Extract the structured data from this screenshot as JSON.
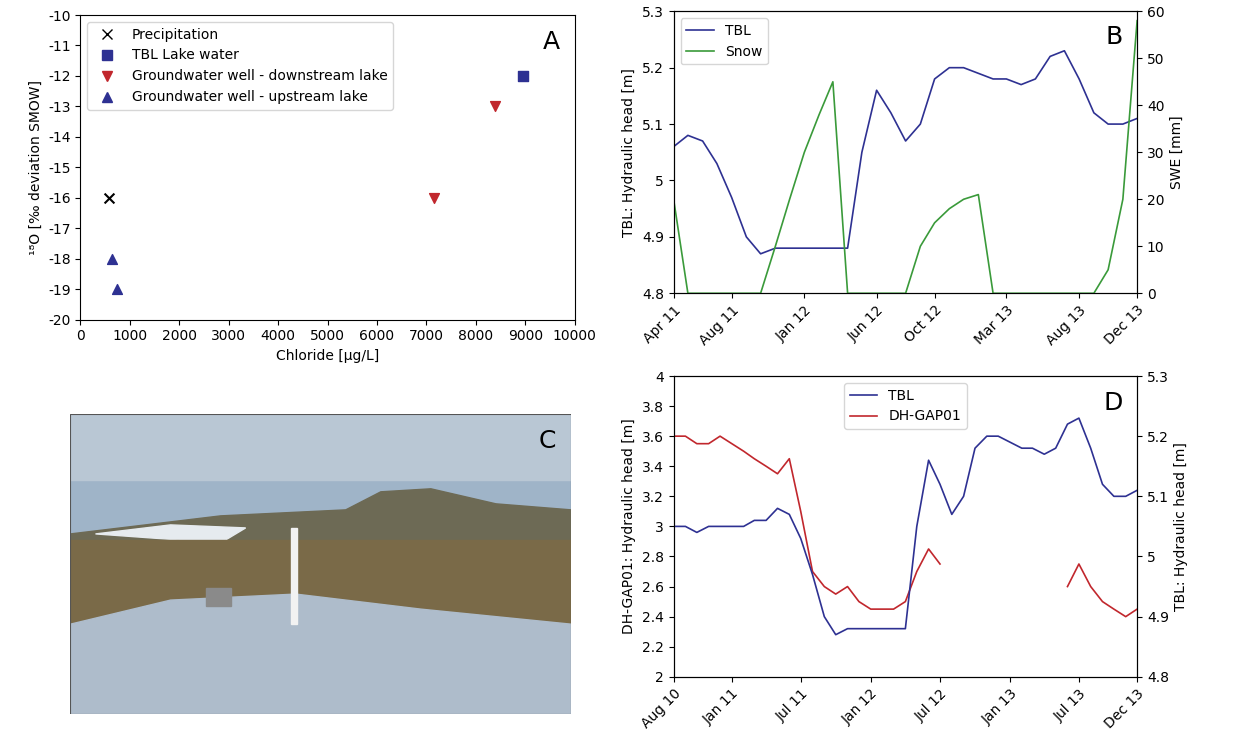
{
  "chart_data": [
    {
      "type": "scatter",
      "panel": "A",
      "x_label": "Chloride [µg/L]",
      "y_label": "¹⁸O [‰ deviation SMOW]",
      "xlim": [
        0,
        10000
      ],
      "xticks": [
        0,
        1000,
        2000,
        3000,
        4000,
        5000,
        6000,
        7000,
        8000,
        9000,
        10000
      ],
      "ylim": [
        -20,
        -10
      ],
      "yticks": [
        -20,
        -19,
        -18,
        -17,
        -16,
        -15,
        -14,
        -13,
        -12,
        -11,
        -10
      ],
      "legend": "upper left",
      "series": [
        {
          "name": "Precipitation",
          "color": "#000000",
          "marker": "x",
          "x": [
            570
          ],
          "values": [
            -16
          ]
        },
        {
          "name": "TBL Lake water",
          "color": "#2e3192",
          "marker": "s",
          "x": [
            8950
          ],
          "values": [
            -12
          ]
        },
        {
          "name": "Groundwater well - downstream lake",
          "color": "#c1272d",
          "marker": "v",
          "x": [
            7150,
            8380
          ],
          "values": [
            -16,
            -13
          ]
        },
        {
          "name": "Groundwater well - upstream lake",
          "color": "#2e3192",
          "marker": "^",
          "x": [
            650,
            750
          ],
          "values": [
            -18,
            -19
          ]
        }
      ]
    },
    {
      "type": "line",
      "panel": "B",
      "y_label": "TBL: Hydraulic head [m]",
      "y2_label": "SWE [mm]",
      "xlim": [
        "2011-04",
        "2013-12"
      ],
      "xticks": [
        {
          "value": "2011-04",
          "label": "Apr 11"
        },
        {
          "value": "2011-08",
          "label": "Aug 11"
        },
        {
          "value": "2012-01",
          "label": "Jan 12"
        },
        {
          "value": "2012-06",
          "label": "Jun 12"
        },
        {
          "value": "2012-10",
          "label": "Oct 12"
        },
        {
          "value": "2013-03",
          "label": "Mar 13"
        },
        {
          "value": "2013-08",
          "label": "Aug 13"
        },
        {
          "value": "2013-12",
          "label": "Dec 13"
        }
      ],
      "ylim": [
        4.8,
        5.3
      ],
      "yticks": [
        4.8,
        4.9,
        5,
        5.1,
        5.2,
        5.3
      ],
      "y2lim": [
        0,
        60
      ],
      "y2ticks": [
        0,
        10,
        20,
        30,
        40,
        50,
        60
      ],
      "legend": "upper left",
      "x": [
        "2011-04",
        "2011-05",
        "2011-06",
        "2011-07",
        "2011-08",
        "2011-09",
        "2011-10",
        "2011-11",
        "2011-12",
        "2012-01",
        "2012-02",
        "2012-03",
        "2012-04",
        "2012-05",
        "2012-06",
        "2012-07",
        "2012-08",
        "2012-09",
        "2012-10",
        "2012-11",
        "2012-12",
        "2013-01",
        "2013-02",
        "2013-03",
        "2013-04",
        "2013-05",
        "2013-06",
        "2013-07",
        "2013-08",
        "2013-09",
        "2013-10",
        "2013-11",
        "2013-12"
      ],
      "series": [
        {
          "name": "TBL",
          "color": "#2e3192",
          "values": [
            5.06,
            5.08,
            5.07,
            5.03,
            4.97,
            4.9,
            4.87,
            4.88,
            4.88,
            4.88,
            4.88,
            4.88,
            4.88,
            5.05,
            5.16,
            5.12,
            5.07,
            5.1,
            5.18,
            5.2,
            5.2,
            5.19,
            5.18,
            5.18,
            5.17,
            5.18,
            5.22,
            5.23,
            5.18,
            5.12,
            5.1,
            5.1,
            5.11
          ]
        },
        {
          "name": "Snow",
          "color": "#3a9a3a",
          "axis": "y2",
          "values": [
            20,
            0,
            0,
            0,
            0,
            0,
            0,
            10,
            20,
            30,
            38,
            45,
            0,
            0,
            0,
            0,
            0,
            10,
            15,
            18,
            20,
            21,
            0,
            0,
            0,
            0,
            0,
            0,
            0,
            0,
            5,
            20,
            58
          ]
        }
      ]
    },
    {
      "type": "image",
      "panel": "C"
    },
    {
      "type": "line",
      "panel": "D",
      "y_label": "DH-GAP01: Hydraulic head [m]",
      "y2_label": "TBL: Hydraulic head [m]",
      "xlim": [
        "2010-08",
        "2013-12"
      ],
      "xticks": [
        {
          "value": "2010-08",
          "label": "Aug 10"
        },
        {
          "value": "2011-01",
          "label": "Jan 11"
        },
        {
          "value": "2011-07",
          "label": "Jul 11"
        },
        {
          "value": "2012-01",
          "label": "Jan 12"
        },
        {
          "value": "2012-07",
          "label": "Jul 12"
        },
        {
          "value": "2013-01",
          "label": "Jan 13"
        },
        {
          "value": "2013-07",
          "label": "Jul 13"
        },
        {
          "value": "2013-12",
          "label": "Dec 13"
        }
      ],
      "ylim": [
        2,
        4
      ],
      "yticks": [
        2,
        2.2,
        2.4,
        2.6,
        2.8,
        3,
        3.2,
        3.4,
        3.6,
        3.8,
        4
      ],
      "y2lim": [
        4.8,
        5.3
      ],
      "y2ticks": [
        4.8,
        4.9,
        5,
        5.1,
        5.2,
        5.3
      ],
      "legend": "upper center",
      "x": [
        "2010-08",
        "2010-09",
        "2010-10",
        "2010-11",
        "2010-12",
        "2011-01",
        "2011-02",
        "2011-03",
        "2011-04",
        "2011-05",
        "2011-06",
        "2011-07",
        "2011-08",
        "2011-09",
        "2011-10",
        "2011-11",
        "2011-12",
        "2012-01",
        "2012-02",
        "2012-03",
        "2012-04",
        "2012-05",
        "2012-06",
        "2012-07",
        "2012-08",
        "2012-09",
        "2012-10",
        "2012-11",
        "2012-12",
        "2013-01",
        "2013-02",
        "2013-03",
        "2013-04",
        "2013-05",
        "2013-06",
        "2013-07",
        "2013-08",
        "2013-09",
        "2013-10",
        "2013-11",
        "2013-12"
      ],
      "series": [
        {
          "name": "TBL",
          "color": "#2e3192",
          "axis": "y2",
          "values": [
            5.05,
            5.05,
            5.04,
            5.05,
            5.05,
            5.05,
            5.05,
            5.06,
            5.06,
            5.08,
            5.07,
            5.03,
            4.97,
            4.9,
            4.87,
            4.88,
            4.88,
            4.88,
            4.88,
            4.88,
            4.88,
            5.05,
            5.16,
            5.12,
            5.07,
            5.1,
            5.18,
            5.2,
            5.2,
            5.19,
            5.18,
            5.18,
            5.17,
            5.18,
            5.22,
            5.23,
            5.18,
            5.12,
            5.1,
            5.1,
            5.11
          ]
        },
        {
          "name": "DH-GAP01",
          "color": "#c1272d",
          "values": [
            3.6,
            3.6,
            3.55,
            3.55,
            3.6,
            3.55,
            3.5,
            3.45,
            3.4,
            3.35,
            3.45,
            3.1,
            2.7,
            2.6,
            2.55,
            2.6,
            2.5,
            2.45,
            2.45,
            2.45,
            2.5,
            2.7,
            2.85,
            2.75,
            null,
            null,
            null,
            null,
            null,
            null,
            null,
            null,
            null,
            null,
            2.6,
            2.75,
            2.6,
            2.5,
            2.45,
            2.4,
            2.45
          ]
        }
      ]
    }
  ]
}
